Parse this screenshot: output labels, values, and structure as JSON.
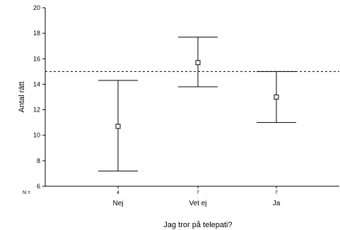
{
  "chart_data": {
    "type": "errorbar",
    "xlabel": "Jag tror på telepati?",
    "ylabel": "Antal rätt",
    "ylim": [
      6,
      20
    ],
    "yticks": [
      6,
      8,
      10,
      12,
      14,
      16,
      18,
      20
    ],
    "n_label": "N =",
    "categories": [
      "Nej",
      "Vet ej",
      "Ja"
    ],
    "n": [
      "4",
      "7",
      "7"
    ],
    "mean": [
      10.7,
      15.7,
      13.0
    ],
    "lower": [
      7.2,
      13.8,
      11.0
    ],
    "upper": [
      14.3,
      17.7,
      15.0
    ],
    "reference_line": 15,
    "grid": false
  }
}
